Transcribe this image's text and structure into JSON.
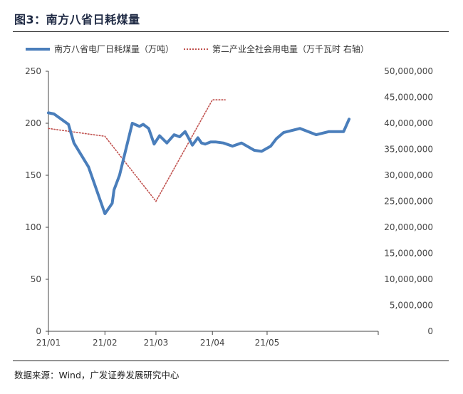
{
  "figure_title": "图3：南方八省日耗煤量",
  "source": "数据来源：Wind，广发证券发展研究中心",
  "colors": {
    "series1": "#4a7ebb",
    "series2": "#c0504d",
    "axis": "#444444",
    "text": "#444444"
  },
  "chart_data": {
    "type": "line",
    "title": "",
    "legend_position": "top",
    "grid": false,
    "x_axis": {
      "type": "date",
      "range": [
        "2021-01-01",
        "2021-07-01"
      ],
      "tick_labels": [
        "21/01",
        "21/02",
        "21/03",
        "21/04",
        "21/05"
      ],
      "tick_dates": [
        "2021-01-01",
        "2021-02-01",
        "2021-03-01",
        "2021-04-01",
        "2021-05-01"
      ]
    },
    "y_left": {
      "range": [
        0,
        250
      ],
      "ticks": [
        0,
        50,
        100,
        150,
        200,
        250
      ],
      "tick_labels": [
        "0",
        "50",
        "100",
        "150",
        "200",
        "250"
      ]
    },
    "y_right": {
      "range": [
        0,
        50000000
      ],
      "ticks": [
        0,
        5000000,
        10000000,
        15000000,
        20000000,
        25000000,
        30000000,
        35000000,
        40000000,
        45000000,
        50000000
      ],
      "tick_labels": [
        "0",
        "5,000,000",
        "10,000,000",
        "15,000,000",
        "20,000,000",
        "25,000,000",
        "30,000,000",
        "35,000,000",
        "40,000,000",
        "45,000,000",
        "50,000,000"
      ]
    },
    "series": [
      {
        "name": "南方八省电厂日耗煤量（万吨）",
        "axis": "left",
        "style": "solid",
        "x": [
          "2021-01-01",
          "2021-01-04",
          "2021-01-12",
          "2021-01-15",
          "2021-01-23",
          "2021-02-01",
          "2021-02-05",
          "2021-02-06",
          "2021-02-09",
          "2021-02-16",
          "2021-02-20",
          "2021-02-22",
          "2021-02-25",
          "2021-02-28",
          "2021-03-03",
          "2021-03-07",
          "2021-03-11",
          "2021-03-14",
          "2021-03-17",
          "2021-03-21",
          "2021-03-24",
          "2021-03-26",
          "2021-03-28",
          "2021-03-31",
          "2021-04-03",
          "2021-04-07",
          "2021-04-12",
          "2021-04-17",
          "2021-04-24",
          "2021-04-28",
          "2021-05-01",
          "2021-05-03",
          "2021-05-06",
          "2021-05-10",
          "2021-05-19",
          "2021-05-28",
          "2021-06-04",
          "2021-06-12",
          "2021-06-15"
        ],
        "values": [
          210,
          209,
          199,
          181,
          158,
          113,
          123,
          136,
          150,
          200,
          197,
          199,
          195,
          180,
          188,
          181,
          189,
          187,
          192,
          179,
          186,
          181,
          180,
          182,
          182,
          181,
          178,
          181,
          174,
          173,
          176,
          178,
          185,
          191,
          195,
          189,
          192,
          192,
          204
        ]
      },
      {
        "name": "第二产业全社会用电量（万千瓦时 右轴）",
        "axis": "right",
        "style": "dotted",
        "x": [
          "2021-01-01",
          "2021-02-01",
          "2021-03-01",
          "2021-04-01",
          "2021-04-08"
        ],
        "values": [
          39000000,
          37500000,
          25000000,
          44500000,
          44500000
        ]
      }
    ]
  }
}
